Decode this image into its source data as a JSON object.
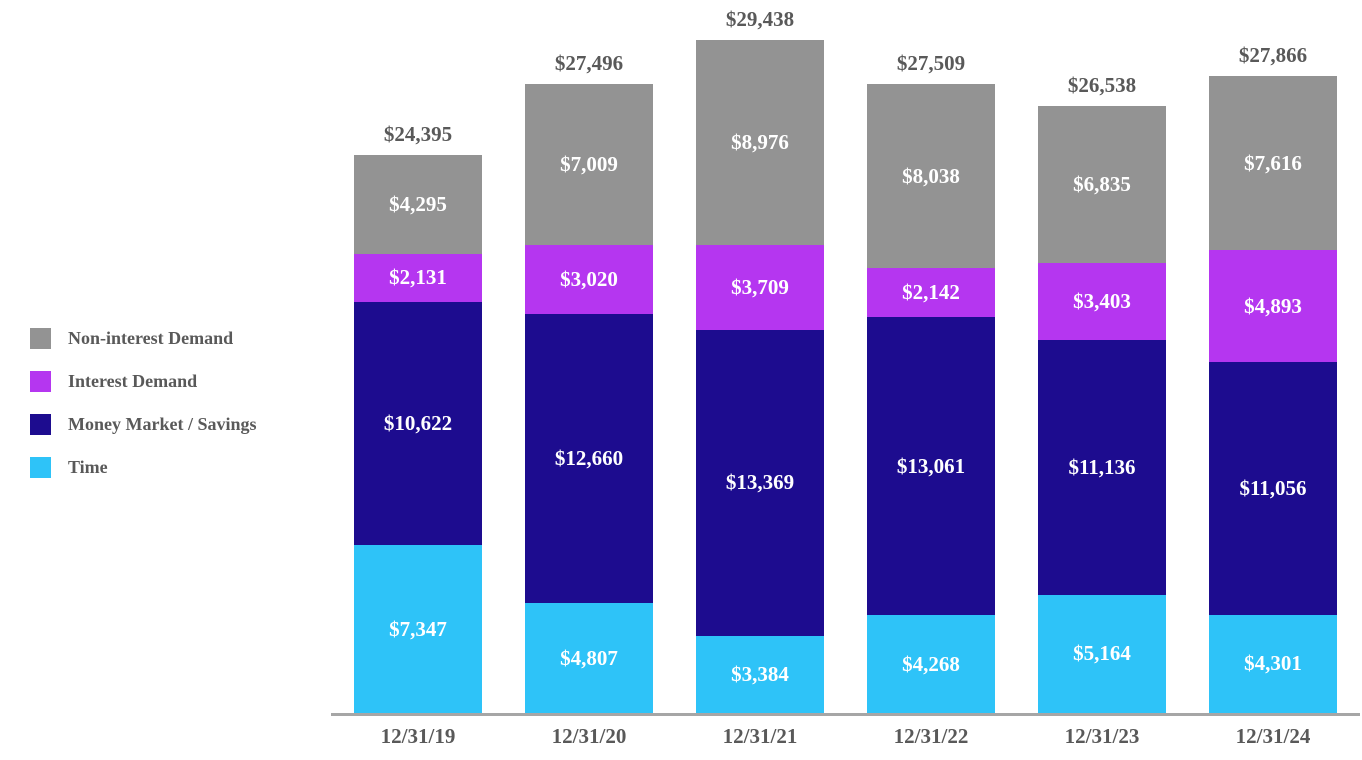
{
  "chart_data": {
    "type": "bar",
    "stacked": true,
    "categories": [
      "12/31/19",
      "12/31/20",
      "12/31/21",
      "12/31/22",
      "12/31/23",
      "12/31/24"
    ],
    "series": [
      {
        "name": "Non-interest Demand",
        "color": "#939393",
        "values": [
          4295,
          7009,
          8976,
          8038,
          6835,
          7616
        ]
      },
      {
        "name": "Interest Demand",
        "color": "#B536F0",
        "values": [
          2131,
          3020,
          3709,
          2142,
          3403,
          4893
        ]
      },
      {
        "name": "Money Market / Savings",
        "color": "#1D0C8F",
        "values": [
          10622,
          12660,
          13369,
          13061,
          11136,
          11056
        ]
      },
      {
        "name": "Time",
        "color": "#2EC3F8",
        "values": [
          7347,
          4807,
          3384,
          4268,
          5164,
          4301
        ]
      }
    ],
    "totals": [
      24395,
      27496,
      29438,
      27509,
      26538,
      27866
    ],
    "value_prefix": "$",
    "title": "",
    "xlabel": "",
    "ylabel": "",
    "grid": false,
    "legend_position": "left",
    "segment_label_color": "#ffffff",
    "total_label_color": "#595959",
    "axis_line_color": "#A6A6A6"
  },
  "legend": {
    "items": [
      {
        "label": "Non-interest Demand",
        "color": "#939393"
      },
      {
        "label": "Interest Demand",
        "color": "#B536F0"
      },
      {
        "label": "Money Market / Savings",
        "color": "#1D0C8F"
      },
      {
        "label": "Time",
        "color": "#2EC3F8"
      }
    ]
  }
}
